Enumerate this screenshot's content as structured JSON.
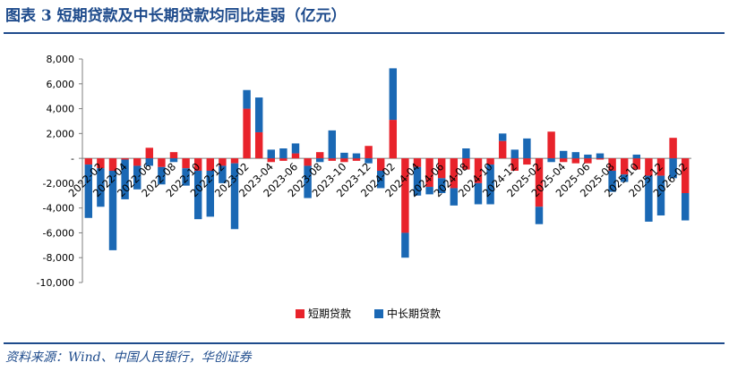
{
  "figure": {
    "title": "图表 3  短期贷款及中长期贷款均同比走弱（亿元）",
    "source": "资料来源：Wind、中国人民银行，华创证券"
  },
  "chart_data": {
    "type": "bar",
    "stacked": true,
    "ylim": [
      -10000,
      8000
    ],
    "yticks": [
      8000,
      6000,
      4000,
      2000,
      0,
      -2000,
      -4000,
      -6000,
      -8000,
      -10000
    ],
    "ytick_labels": [
      "8,000",
      "6,000",
      "4,000",
      "2,000",
      "-",
      "-2,000",
      "-4,000",
      "-6,000",
      "-8,000",
      "-10,000"
    ],
    "x_labels": [
      "2022-02",
      "2022-04",
      "2022-06",
      "2022-08",
      "2022-10",
      "2022-12",
      "2023-02",
      "2023-04",
      "2023-06",
      "2023-08",
      "2023-10",
      "2023-12",
      "2024-02",
      "2024-04",
      "2024-06",
      "2024-08",
      "2024-10",
      "2024-12",
      "2025-02",
      "2025-04",
      "2025-06",
      "2025-08",
      "2025-10",
      "2025-12",
      "2026-02"
    ],
    "categories": [
      "2022-01",
      "2022-02",
      "2022-03",
      "2022-04",
      "2022-05",
      "2022-06",
      "2022-07",
      "2022-08",
      "2022-09",
      "2022-10",
      "2022-11",
      "2022-12",
      "2023-01",
      "2023-02",
      "2023-03",
      "2023-04",
      "2023-05",
      "2023-06",
      "2023-07",
      "2023-08",
      "2023-09",
      "2023-10",
      "2023-11",
      "2023-12",
      "2024-01",
      "2024-02",
      "2024-03",
      "2024-04",
      "2024-05",
      "2024-06",
      "2024-07",
      "2024-08",
      "2024-09",
      "2024-10",
      "2024-11",
      "2024-12",
      "2025-01",
      "2025-02",
      "2025-03",
      "2025-04",
      "2025-05",
      "2025-06",
      "2025-07",
      "2025-08",
      "2025-09",
      "2025-10",
      "2025-11",
      "2025-12",
      "2026-01",
      "2026-02"
    ],
    "series": [
      {
        "name": "短期贷款",
        "color": "#e8232b",
        "values": [
          -500,
          -800,
          -1000,
          -100,
          -600,
          850,
          -700,
          500,
          -800,
          -1000,
          -1000,
          -600,
          -400,
          4000,
          2100,
          -300,
          -200,
          400,
          -600,
          500,
          -200,
          -300,
          -200,
          1000,
          -1000,
          3100,
          -6000,
          -700,
          -2300,
          -1600,
          -2400,
          -900,
          -2000,
          -500,
          1400,
          -1000,
          -500,
          -3900,
          2150,
          -300,
          -400,
          -400,
          -100,
          -1000,
          -1300,
          -900,
          -1400,
          -1400,
          1650,
          -2800
        ]
      },
      {
        "name": "中长期贷款",
        "color": "#1a68b4",
        "values": [
          -4300,
          -3100,
          -6400,
          -3200,
          -1900,
          -600,
          -1400,
          -300,
          -1400,
          -3900,
          -3700,
          -1400,
          -5300,
          1500,
          2800,
          700,
          800,
          800,
          -2600,
          -300,
          2250,
          450,
          400,
          -400,
          -1400,
          4150,
          -2000,
          -2300,
          -600,
          -1200,
          -1400,
          800,
          -1700,
          -3200,
          600,
          700,
          1600,
          -1400,
          -300,
          600,
          500,
          300,
          400,
          -1700,
          -600,
          300,
          -3700,
          -3200,
          -1600,
          -2200
        ]
      }
    ]
  }
}
